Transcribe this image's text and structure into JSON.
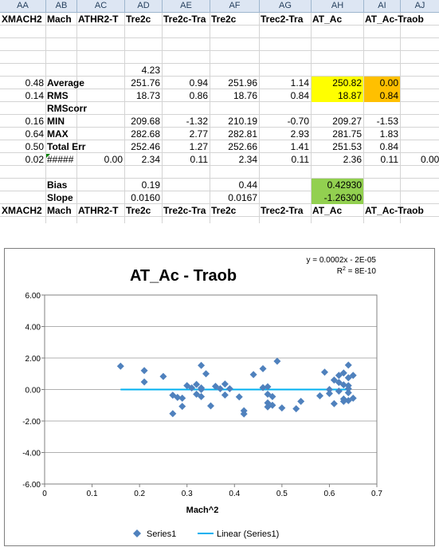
{
  "columns": [
    "AA",
    "AB",
    "AC",
    "AD",
    "AE",
    "AF",
    "AG",
    "AH",
    "AI",
    "AJ"
  ],
  "header_labels": [
    "XMACH2",
    "Mach",
    "ATHR2-T",
    "Tre2c",
    "Tre2c-Tra",
    "Tre2c",
    "Trec2-Tra",
    "AT_Ac",
    "AT_Ac-Traob"
  ],
  "rows": {
    "r5": {
      "ad": "4.23"
    },
    "r6": {
      "aa": "0.48",
      "ab": "Average",
      "ad": "251.76",
      "ae": "0.94",
      "af": "251.96",
      "ag": "1.14",
      "ah": "250.82",
      "ai": "0.00"
    },
    "r7": {
      "aa": "0.14",
      "ab": "RMS",
      "ad": "18.73",
      "ae": "0.86",
      "af": "18.76",
      "ag": "0.84",
      "ah": "18.87",
      "ai": "0.84"
    },
    "r8": {
      "ab": "RMScorr"
    },
    "r9": {
      "aa": "0.16",
      "ab": "MIN",
      "ad": "209.68",
      "ae": "-1.32",
      "af": "210.19",
      "ag": "-0.70",
      "ah": "209.27",
      "ai": "-1.53"
    },
    "r10": {
      "aa": "0.64",
      "ab": "MAX",
      "ad": "282.68",
      "ae": "2.77",
      "af": "282.81",
      "ag": "2.93",
      "ah": "281.75",
      "ai": "1.83"
    },
    "r11": {
      "aa": "0.50",
      "ab": "Total Err",
      "ad": "252.46",
      "ae": "1.27",
      "af": "252.66",
      "ag": "1.41",
      "ah": "251.53",
      "ai": "0.84"
    },
    "r12": {
      "aa": "0.02",
      "ab": "#####",
      "ac": "0.00",
      "ad": "2.34",
      "ae": "0.11",
      "af": "2.34",
      "ag": "0.11",
      "ah": "2.36",
      "ai": "0.11",
      "aj": "0.00"
    },
    "r14": {
      "ab": "Bias",
      "ad": "0.19",
      "af": "0.44",
      "ah": "0.42930"
    },
    "r15": {
      "ab": "Slope",
      "ad": "0.0160",
      "af": "0.0167",
      "ah": "-1.26300"
    }
  },
  "chart": {
    "title": "AT_Ac - Traob",
    "equation": "y = 0.0002x - 2E-05",
    "r2_prefix": "R",
    "r2_sup": "2",
    "r2_rest": " = 8E-10",
    "xlabel": "Mach^2",
    "legend_series": "Series1",
    "legend_trend": "Linear (Series1)",
    "marker_color": "#4f81bd",
    "trend_color": "#00b0f0"
  },
  "chart_data": {
    "type": "scatter",
    "title": "AT_Ac - Traob",
    "xlabel": "Mach^2",
    "ylabel": "",
    "xlim": [
      0,
      0.7
    ],
    "ylim": [
      -6,
      6
    ],
    "xticks": [
      "0",
      "0.1",
      "0.2",
      "0.3",
      "0.4",
      "0.5",
      "0.6",
      "0.7"
    ],
    "yticks": [
      "6.00",
      "4.00",
      "2.00",
      "0.00",
      "-2.00",
      "-4.00",
      "-6.00"
    ],
    "grid": true,
    "legend": "bottom",
    "series": [
      {
        "name": "Series1",
        "points": [
          [
            0.16,
            1.48
          ],
          [
            0.21,
            1.2
          ],
          [
            0.21,
            0.48
          ],
          [
            0.25,
            0.83
          ],
          [
            0.27,
            -0.36
          ],
          [
            0.27,
            -1.53
          ],
          [
            0.28,
            -0.5
          ],
          [
            0.29,
            -0.55
          ],
          [
            0.29,
            -1.07
          ],
          [
            0.3,
            0.25
          ],
          [
            0.31,
            0.1
          ],
          [
            0.32,
            0.32
          ],
          [
            0.32,
            -0.3
          ],
          [
            0.33,
            -0.45
          ],
          [
            0.33,
            0.0
          ],
          [
            0.33,
            0.1
          ],
          [
            0.33,
            1.53
          ],
          [
            0.34,
            1.0
          ],
          [
            0.35,
            -1.04
          ],
          [
            0.36,
            0.2
          ],
          [
            0.37,
            0.05
          ],
          [
            0.38,
            0.35
          ],
          [
            0.38,
            -0.35
          ],
          [
            0.39,
            0.05
          ],
          [
            0.41,
            -0.47
          ],
          [
            0.42,
            -1.35
          ],
          [
            0.42,
            -1.55
          ],
          [
            0.44,
            0.95
          ],
          [
            0.46,
            1.32
          ],
          [
            0.46,
            0.12
          ],
          [
            0.47,
            0.18
          ],
          [
            0.47,
            -0.3
          ],
          [
            0.47,
            -0.85
          ],
          [
            0.47,
            -1.1
          ],
          [
            0.48,
            -1.0
          ],
          [
            0.48,
            -0.45
          ],
          [
            0.49,
            1.8
          ],
          [
            0.5,
            -1.17
          ],
          [
            0.53,
            -1.22
          ],
          [
            0.54,
            -0.75
          ],
          [
            0.58,
            -0.4
          ],
          [
            0.59,
            1.1
          ],
          [
            0.6,
            0.0
          ],
          [
            0.6,
            -0.25
          ],
          [
            0.61,
            0.6
          ],
          [
            0.61,
            -0.9
          ],
          [
            0.62,
            0.45
          ],
          [
            0.62,
            0.9
          ],
          [
            0.62,
            -0.1
          ],
          [
            0.63,
            1.05
          ],
          [
            0.63,
            0.3
          ],
          [
            0.63,
            -0.6
          ],
          [
            0.63,
            -0.75
          ],
          [
            0.64,
            0.75
          ],
          [
            0.64,
            0.25
          ],
          [
            0.64,
            -0.2
          ],
          [
            0.64,
            -0.7
          ],
          [
            0.64,
            1.55
          ],
          [
            0.64,
            0.05
          ],
          [
            0.65,
            0.9
          ],
          [
            0.65,
            -0.55
          ]
        ]
      },
      {
        "name": "Linear (Series1)",
        "type": "line",
        "points": [
          [
            0.16,
            3e-05
          ],
          [
            0.64,
            0.0001
          ]
        ]
      }
    ]
  }
}
